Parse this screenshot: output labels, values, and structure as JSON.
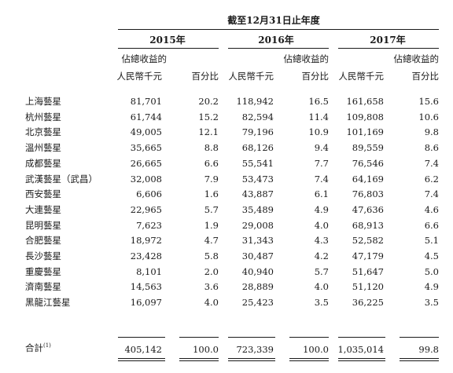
{
  "period_header": "截至12月31日止年度",
  "years": [
    "2015年",
    "2016年",
    "2017年"
  ],
  "col_headers": {
    "amount": "人民幣千元",
    "pct_line1": "佔總收益的",
    "pct_line2": "百分比"
  },
  "rows": [
    {
      "name": "上海藝星",
      "v2015": "81,701",
      "p2015": "20.2",
      "v2016": "118,942",
      "p2016": "16.5",
      "v2017": "161,658",
      "p2017": "15.6"
    },
    {
      "name": "杭州藝星",
      "v2015": "61,744",
      "p2015": "15.2",
      "v2016": "82,594",
      "p2016": "11.4",
      "v2017": "109,808",
      "p2017": "10.6"
    },
    {
      "name": "北京藝星",
      "v2015": "49,005",
      "p2015": "12.1",
      "v2016": "79,196",
      "p2016": "10.9",
      "v2017": "101,169",
      "p2017": "9.8"
    },
    {
      "name": "溫州藝星",
      "v2015": "35,665",
      "p2015": "8.8",
      "v2016": "68,126",
      "p2016": "9.4",
      "v2017": "89,559",
      "p2017": "8.6"
    },
    {
      "name": "成都藝星",
      "v2015": "26,665",
      "p2015": "6.6",
      "v2016": "55,541",
      "p2016": "7.7",
      "v2017": "76,546",
      "p2017": "7.4"
    },
    {
      "name": "武漢藝星（武昌）",
      "v2015": "32,008",
      "p2015": "7.9",
      "v2016": "53,473",
      "p2016": "7.4",
      "v2017": "64,169",
      "p2017": "6.2"
    },
    {
      "name": "西安藝星",
      "v2015": "6,606",
      "p2015": "1.6",
      "v2016": "43,887",
      "p2016": "6.1",
      "v2017": "76,803",
      "p2017": "7.4"
    },
    {
      "name": "大連藝星",
      "v2015": "22,965",
      "p2015": "5.7",
      "v2016": "35,489",
      "p2016": "4.9",
      "v2017": "47,636",
      "p2017": "4.6"
    },
    {
      "name": "昆明藝星",
      "v2015": "7,623",
      "p2015": "1.9",
      "v2016": "29,008",
      "p2016": "4.0",
      "v2017": "68,913",
      "p2017": "6.6"
    },
    {
      "name": "合肥藝星",
      "v2015": "18,972",
      "p2015": "4.7",
      "v2016": "31,343",
      "p2016": "4.3",
      "v2017": "52,582",
      "p2017": "5.1"
    },
    {
      "name": "長沙藝星",
      "v2015": "23,428",
      "p2015": "5.8",
      "v2016": "30,487",
      "p2016": "4.2",
      "v2017": "47,179",
      "p2017": "4.5"
    },
    {
      "name": "重慶藝星",
      "v2015": "8,101",
      "p2015": "2.0",
      "v2016": "40,940",
      "p2016": "5.7",
      "v2017": "51,647",
      "p2017": "5.0"
    },
    {
      "name": "濟南藝星",
      "v2015": "14,563",
      "p2015": "3.6",
      "v2016": "28,889",
      "p2016": "4.0",
      "v2017": "51,120",
      "p2017": "4.9"
    },
    {
      "name": "黑龍江藝星",
      "v2015": "16,097",
      "p2015": "4.0",
      "v2016": "25,423",
      "p2016": "3.5",
      "v2017": "36,225",
      "p2017": "3.5"
    }
  ],
  "total": {
    "label": "合計",
    "footnote": "(1)",
    "v2015": "405,142",
    "p2015": "100.0",
    "v2016": "723,339",
    "p2016": "100.0",
    "v2017": "1,035,014",
    "p2017": "99.8"
  }
}
